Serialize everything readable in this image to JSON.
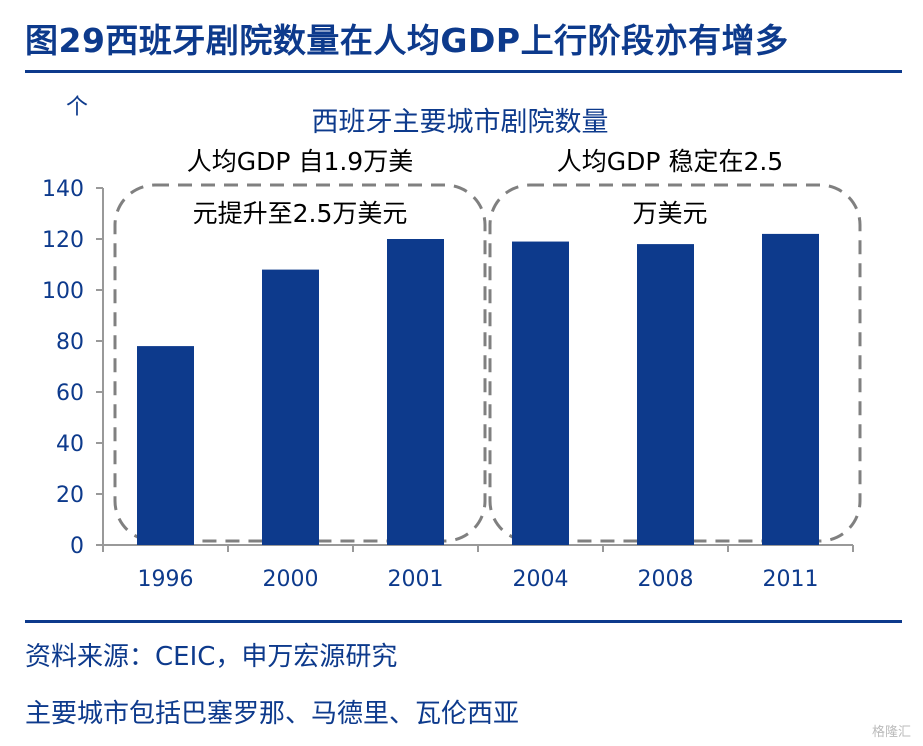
{
  "header": {
    "title": "图29西班牙剧院数量在人均GDP上行阶段亦有增多"
  },
  "chart_data": {
    "type": "bar",
    "title": "西班牙主要城市剧院数量",
    "unit_label": "个",
    "categories": [
      "1996",
      "2000",
      "2001",
      "2004",
      "2008",
      "2011"
    ],
    "series": [
      {
        "values": [
          78,
          108,
          120,
          119,
          118,
          122
        ]
      }
    ],
    "ylim": [
      0,
      140
    ],
    "yticks": [
      0,
      20,
      40,
      60,
      80,
      100,
      120,
      140
    ],
    "grid": false,
    "bar_color": "#0d3a8c",
    "annotations": [
      {
        "lines": [
          "人均GDP 自1.9万美",
          "元提升至2.5万美元"
        ],
        "covers": [
          "1996",
          "2000",
          "2001"
        ]
      },
      {
        "lines": [
          "人均GDP 稳定在2.5",
          "万美元"
        ],
        "covers": [
          "2004",
          "2008",
          "2011"
        ]
      }
    ]
  },
  "footer": {
    "source": "资料来源：CEIC，申万宏源研究",
    "note": "主要城市包括巴塞罗那、马德里、瓦伦西亚",
    "watermark": "格隆汇"
  }
}
